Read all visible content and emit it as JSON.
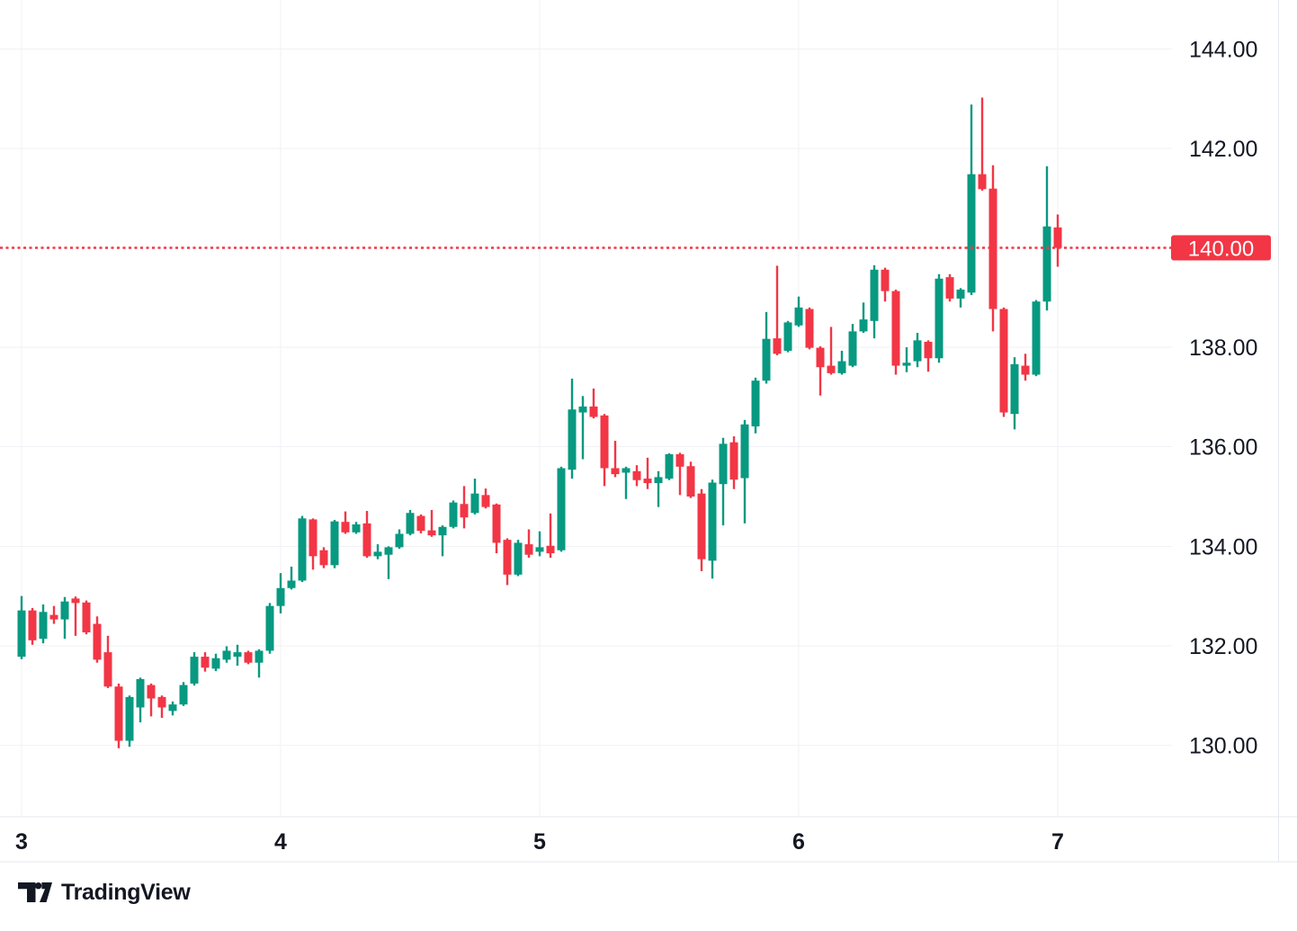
{
  "logo": {
    "wordmark": "TradingView"
  },
  "chart_data": {
    "type": "candlestick",
    "grid": true,
    "legend_position": "none",
    "x_axis": {
      "tick_labels": [
        "3",
        "4",
        "5",
        "6",
        "7"
      ],
      "tick_candle_indices": [
        0,
        24,
        48,
        72,
        96
      ]
    },
    "y_axis": {
      "tick_values": [
        130,
        132,
        134,
        136,
        138,
        140,
        142,
        144
      ],
      "tick_labels": [
        "130.00",
        "132.00",
        "134.00",
        "136.00",
        "138.00",
        "140.00",
        "142.00",
        "144.00"
      ],
      "visible_range": [
        128.56,
        144.98
      ]
    },
    "price_line": {
      "value": 140.0,
      "label": "140.00",
      "style": "dotted"
    },
    "candles": [
      [
        131.78,
        133.0,
        131.73,
        132.71
      ],
      [
        132.71,
        132.76,
        132.02,
        132.11
      ],
      [
        132.14,
        132.83,
        132.05,
        132.68
      ],
      [
        132.62,
        132.8,
        132.44,
        132.53
      ],
      [
        132.53,
        132.98,
        132.14,
        132.89
      ],
      [
        132.95,
        132.99,
        132.2,
        132.86
      ],
      [
        132.87,
        132.91,
        132.23,
        132.27
      ],
      [
        132.44,
        132.59,
        131.66,
        131.72
      ],
      [
        131.87,
        132.2,
        131.15,
        131.18
      ],
      [
        131.18,
        131.24,
        129.94,
        130.09
      ],
      [
        130.09,
        131.0,
        129.97,
        130.97
      ],
      [
        130.76,
        131.36,
        130.46,
        131.33
      ],
      [
        131.21,
        131.24,
        130.58,
        130.94
      ],
      [
        130.97,
        131.0,
        130.55,
        130.76
      ],
      [
        130.69,
        130.88,
        130.6,
        130.82
      ],
      [
        130.82,
        131.27,
        130.79,
        131.21
      ],
      [
        131.24,
        131.87,
        131.2,
        131.78
      ],
      [
        131.78,
        131.87,
        131.48,
        131.56
      ],
      [
        131.54,
        131.84,
        131.49,
        131.75
      ],
      [
        131.72,
        131.99,
        131.66,
        131.9
      ],
      [
        131.78,
        132.02,
        131.6,
        131.87
      ],
      [
        131.87,
        131.9,
        131.63,
        131.66
      ],
      [
        131.66,
        131.93,
        131.36,
        131.9
      ],
      [
        131.9,
        132.86,
        131.84,
        132.8
      ],
      [
        132.8,
        133.46,
        132.65,
        133.16
      ],
      [
        133.16,
        133.59,
        133.13,
        133.31
      ],
      [
        133.31,
        134.61,
        133.28,
        134.56
      ],
      [
        134.54,
        134.56,
        133.53,
        133.8
      ],
      [
        133.92,
        133.98,
        133.56,
        133.62
      ],
      [
        133.62,
        134.53,
        133.56,
        134.5
      ],
      [
        134.49,
        134.7,
        134.25,
        134.28
      ],
      [
        134.28,
        134.49,
        134.25,
        134.44
      ],
      [
        134.46,
        134.71,
        133.77,
        133.8
      ],
      [
        133.8,
        134.04,
        133.74,
        133.89
      ],
      [
        133.83,
        134.0,
        133.34,
        133.98
      ],
      [
        133.98,
        134.34,
        133.95,
        134.25
      ],
      [
        134.25,
        134.73,
        134.22,
        134.67
      ],
      [
        134.61,
        134.64,
        134.26,
        134.31
      ],
      [
        134.32,
        134.73,
        134.19,
        134.22
      ],
      [
        134.22,
        134.42,
        133.8,
        134.39
      ],
      [
        134.39,
        134.92,
        134.36,
        134.88
      ],
      [
        134.85,
        135.21,
        134.36,
        134.58
      ],
      [
        134.67,
        135.36,
        134.64,
        135.06
      ],
      [
        135.03,
        135.16,
        134.76,
        134.79
      ],
      [
        134.84,
        134.86,
        133.86,
        134.07
      ],
      [
        134.13,
        134.16,
        133.22,
        133.43
      ],
      [
        133.43,
        134.13,
        133.4,
        134.07
      ],
      [
        134.04,
        134.34,
        133.77,
        133.83
      ],
      [
        133.89,
        134.3,
        133.8,
        133.98
      ],
      [
        134.01,
        134.66,
        133.77,
        133.86
      ],
      [
        133.92,
        135.6,
        133.89,
        135.57
      ],
      [
        135.54,
        137.37,
        135.36,
        136.75
      ],
      [
        136.69,
        137.02,
        135.75,
        136.81
      ],
      [
        136.81,
        137.17,
        136.57,
        136.6
      ],
      [
        136.63,
        136.66,
        135.21,
        135.57
      ],
      [
        135.57,
        136.12,
        135.39,
        135.45
      ],
      [
        135.48,
        135.6,
        134.95,
        135.57
      ],
      [
        135.51,
        135.63,
        135.21,
        135.33
      ],
      [
        135.36,
        135.78,
        135.15,
        135.27
      ],
      [
        135.27,
        135.51,
        134.79,
        135.39
      ],
      [
        135.36,
        135.87,
        135.33,
        135.85
      ],
      [
        135.85,
        135.88,
        135.03,
        135.6
      ],
      [
        135.61,
        135.7,
        134.97,
        135.0
      ],
      [
        135.06,
        135.15,
        133.5,
        133.74
      ],
      [
        133.71,
        135.34,
        133.35,
        135.28
      ],
      [
        135.25,
        136.18,
        134.42,
        136.06
      ],
      [
        136.09,
        136.21,
        135.15,
        135.34
      ],
      [
        135.37,
        136.54,
        134.46,
        136.45
      ],
      [
        136.41,
        137.39,
        136.27,
        137.33
      ],
      [
        137.33,
        138.71,
        137.27,
        138.17
      ],
      [
        138.18,
        139.64,
        137.84,
        137.87
      ],
      [
        137.93,
        138.53,
        137.9,
        138.5
      ],
      [
        138.44,
        139.02,
        138.41,
        138.8
      ],
      [
        138.77,
        138.8,
        137.96,
        137.99
      ],
      [
        137.99,
        138.02,
        137.03,
        137.6
      ],
      [
        137.63,
        138.41,
        137.45,
        137.48
      ],
      [
        137.48,
        137.93,
        137.45,
        137.72
      ],
      [
        137.63,
        138.47,
        137.6,
        138.32
      ],
      [
        138.32,
        138.9,
        138.29,
        138.56
      ],
      [
        138.53,
        139.65,
        138.18,
        139.56
      ],
      [
        139.56,
        139.6,
        138.92,
        139.13
      ],
      [
        139.13,
        139.16,
        137.45,
        137.63
      ],
      [
        137.63,
        138.0,
        137.5,
        137.69
      ],
      [
        137.72,
        138.29,
        137.6,
        138.14
      ],
      [
        138.11,
        138.14,
        137.51,
        137.78
      ],
      [
        137.78,
        139.47,
        137.69,
        139.38
      ],
      [
        139.41,
        139.47,
        138.92,
        138.98
      ],
      [
        138.98,
        139.19,
        138.8,
        139.16
      ],
      [
        139.1,
        142.88,
        139.05,
        141.48
      ],
      [
        141.48,
        143.02,
        141.15,
        141.18
      ],
      [
        141.19,
        141.66,
        138.32,
        138.77
      ],
      [
        138.77,
        138.8,
        136.6,
        136.69
      ],
      [
        136.66,
        137.8,
        136.35,
        137.66
      ],
      [
        137.63,
        137.87,
        137.33,
        137.45
      ],
      [
        137.45,
        138.95,
        137.42,
        138.92
      ],
      [
        138.92,
        141.64,
        138.74,
        140.43
      ],
      [
        140.41,
        140.67,
        139.62,
        140.0
      ]
    ],
    "colors": {
      "up": "#089981",
      "down": "#F23645",
      "price_line": "#F23645",
      "badge_bg": "#F23645",
      "badge_text": "#FFFFFF",
      "grid": "#F1F2F6",
      "border": "#E4E7EE",
      "axis_text": "#131722",
      "background": "#FFFFFF",
      "logo_text": "#131722"
    }
  }
}
